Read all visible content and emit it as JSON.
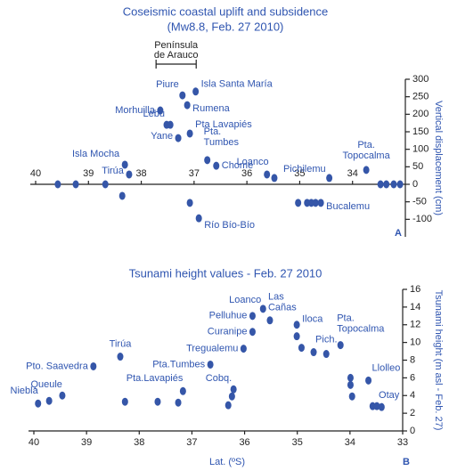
{
  "chart_data": [
    {
      "type": "scatter",
      "title": "Coseismic coastal uplift and subsidence",
      "subtitle": "(Mw8.8, Feb. 27 2010)",
      "panel": "A",
      "ylabel": "Vertical displacement (cm)",
      "bracket_label": [
        "Península",
        "de Arauco"
      ],
      "bracket_lat": [
        37.72,
        36.96
      ],
      "xlim": [
        40,
        33
      ],
      "xticks": [
        40,
        39,
        38,
        37,
        36,
        35,
        34
      ],
      "ylim": [
        -150,
        300
      ],
      "yticks": [
        300,
        250,
        200,
        150,
        100,
        50,
        0,
        -50,
        -100
      ],
      "color": "#3556a8",
      "x": [
        39.58,
        39.24,
        38.68,
        38.31,
        38.23,
        38.36,
        37.64,
        37.52,
        37.45,
        37.22,
        36.97,
        37.13,
        37.08,
        37.3,
        36.75,
        36.58,
        35.62,
        35.48,
        34.44,
        33.74,
        33.47,
        33.36,
        33.22,
        33.1,
        37.08,
        36.91,
        35.03,
        34.86,
        34.78,
        34.7,
        34.6
      ],
      "values": [
        0,
        0,
        0,
        56,
        28,
        -33,
        211,
        170,
        170,
        254,
        265,
        226,
        145,
        132,
        69,
        53,
        28,
        18,
        18,
        41,
        0,
        0,
        0,
        0,
        -53,
        -97,
        -53,
        -53,
        -53,
        -53,
        -53
      ],
      "point_labels": [
        null,
        null,
        null,
        "Isla Mocha",
        "Tirúa",
        null,
        "Morhuilla",
        "Lebu",
        null,
        "Piure",
        "Isla Santa María",
        "Rumena",
        "Pta Lavapiés",
        "Yane",
        [
          "Pta.",
          "Tumbes"
        ],
        "Chome",
        "Loanco",
        null,
        "Pichilemu",
        [
          "Pta.",
          "Topocalma"
        ],
        null,
        null,
        null,
        null,
        null,
        "Río Bío-Bío",
        null,
        null,
        null,
        null,
        "Bucalemu"
      ]
    },
    {
      "type": "scatter",
      "title": "Tsunami height values - Feb. 27 2010",
      "panel": "B",
      "ylabel": "Tsunami height (m asl - Feb. 27)",
      "xlabel": "Lat. (ºS)",
      "xlim": [
        40,
        33
      ],
      "xticks": [
        40,
        39,
        38,
        37,
        36,
        35,
        34,
        33
      ],
      "ylim": [
        0,
        16
      ],
      "yticks": [
        0,
        2,
        4,
        6,
        8,
        10,
        12,
        14,
        16
      ],
      "color": "#3556a8",
      "x": [
        39.92,
        39.71,
        39.46,
        38.87,
        38.36,
        38.27,
        37.65,
        37.26,
        37.17,
        36.65,
        36.31,
        36.24,
        36.21,
        36.02,
        35.85,
        35.85,
        35.65,
        35.52,
        35.01,
        35.01,
        34.92,
        34.69,
        34.45,
        34.18,
        33.99,
        33.99,
        33.96,
        33.65,
        33.57,
        33.49,
        33.4
      ],
      "values": [
        3.1,
        3.4,
        4.0,
        7.3,
        8.4,
        3.3,
        3.3,
        3.2,
        4.5,
        7.5,
        2.9,
        3.9,
        4.7,
        9.3,
        11.2,
        13.0,
        13.8,
        12.5,
        12.0,
        10.7,
        9.4,
        8.9,
        8.7,
        9.7,
        6.0,
        5.2,
        3.9,
        5.7,
        2.8,
        2.8,
        2.7
      ],
      "point_labels": [
        "Niebla",
        null,
        "Queule",
        "Pto. Saavedra",
        "Tirúa",
        null,
        null,
        null,
        "Pta.Lavapiés",
        "Pta.Tumbes",
        null,
        null,
        "Cobq.",
        "Tregualemu",
        "Curanipe",
        "Pelluhue",
        "Loanco",
        [
          "Las",
          "Cañas"
        ],
        "Iloca",
        null,
        null,
        "Pich.",
        null,
        [
          "Pta.",
          "Topocalma"
        ],
        null,
        null,
        null,
        "Llolleo",
        null,
        "Otay",
        null
      ]
    }
  ]
}
